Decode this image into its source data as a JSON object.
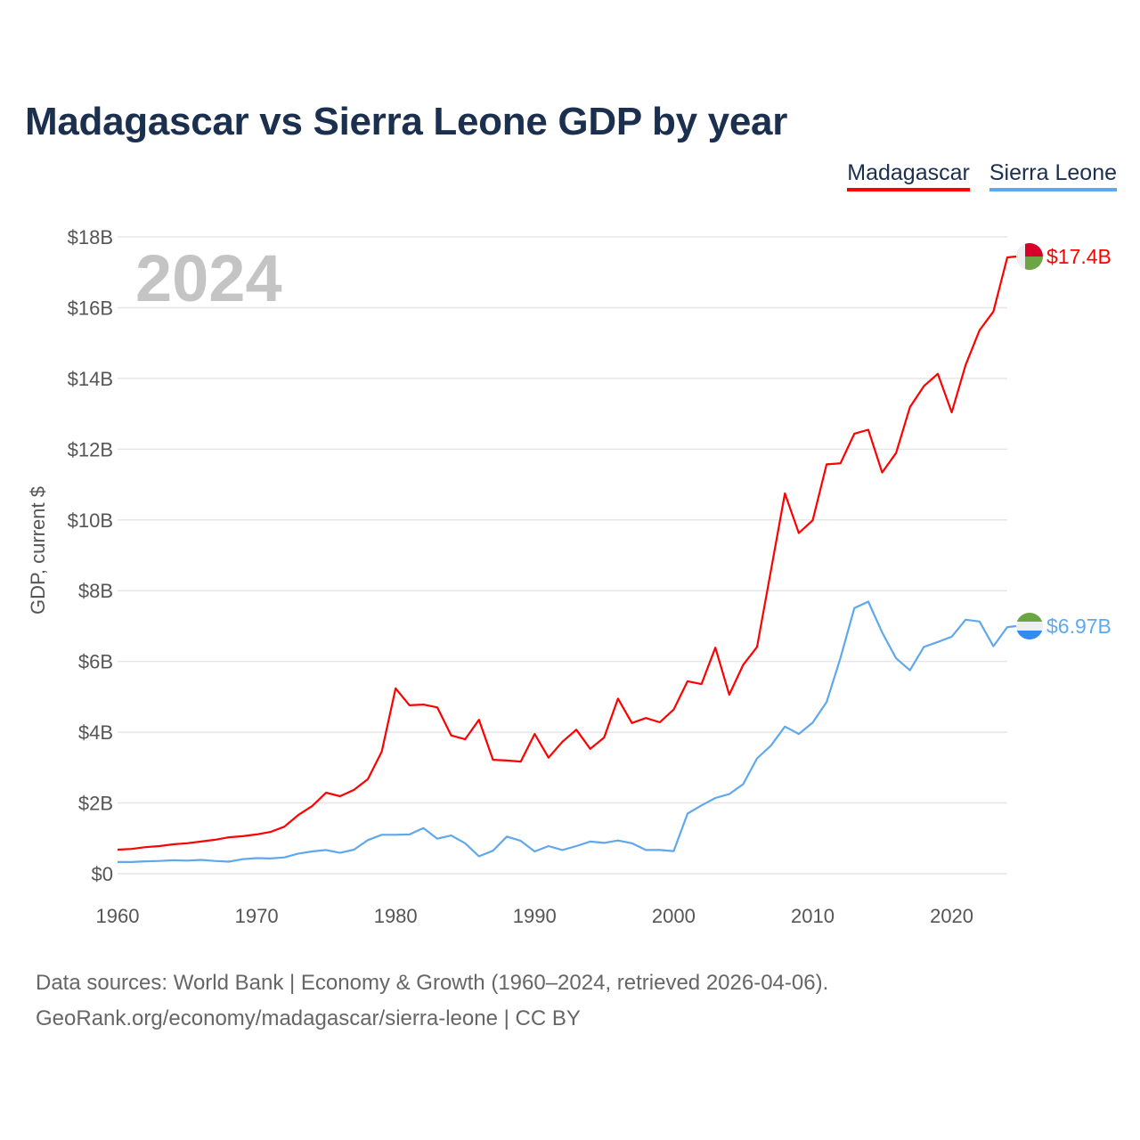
{
  "title": "Madagascar vs Sierra Leone GDP by year",
  "legend": [
    {
      "label": "Madagascar",
      "color": "#ff0000"
    },
    {
      "label": "Sierra Leone",
      "color": "#5fa8ec"
    }
  ],
  "year_watermark": "2024",
  "source_line1": "Data sources: World Bank | Economy & Growth (1960–2024, retrieved 2026-04-06).",
  "source_line2": "GeoRank.org/economy/madagascar/sierra-leone | CC BY",
  "chart_data": {
    "type": "line",
    "title": "Madagascar vs Sierra Leone GDP by year",
    "xlabel": "",
    "ylabel": "GDP, current $",
    "xlim": [
      1960,
      2024
    ],
    "ylim": [
      0,
      18
    ],
    "grid": true,
    "legend_position": "top-right",
    "x_ticks": [
      1960,
      1970,
      1980,
      1990,
      2000,
      2010,
      2020
    ],
    "x_tick_labels": [
      "1960",
      "1970",
      "1980",
      "1990",
      "2000",
      "2010",
      "2020"
    ],
    "y_ticks": [
      0,
      2,
      4,
      6,
      8,
      10,
      12,
      14,
      16,
      18
    ],
    "y_tick_labels": [
      "$0",
      "$2B",
      "$4B",
      "$6B",
      "$8B",
      "$10B",
      "$12B",
      "$14B",
      "$16B",
      "$18B"
    ],
    "x_start": 1960,
    "units": "billions USD",
    "series": [
      {
        "name": "Madagascar",
        "color": "#ff0000",
        "end_label": "$17.4B",
        "flag": "madagascar-flag",
        "values": [
          0.68,
          0.7,
          0.75,
          0.78,
          0.83,
          0.86,
          0.91,
          0.96,
          1.03,
          1.06,
          1.11,
          1.18,
          1.33,
          1.66,
          1.91,
          2.29,
          2.19,
          2.37,
          2.67,
          3.45,
          5.24,
          4.76,
          4.78,
          4.7,
          3.91,
          3.8,
          4.35,
          3.22,
          3.2,
          3.17,
          3.95,
          3.28,
          3.73,
          4.07,
          3.53,
          3.85,
          4.95,
          4.26,
          4.4,
          4.28,
          4.64,
          5.44,
          5.36,
          6.39,
          5.06,
          5.9,
          6.41,
          8.57,
          10.75,
          9.63,
          9.99,
          11.57,
          11.6,
          12.44,
          12.55,
          11.34,
          11.89,
          13.19,
          13.78,
          14.13,
          13.04,
          14.38,
          15.36,
          15.89,
          17.42
        ]
      },
      {
        "name": "Sierra Leone",
        "color": "#5fa8ec",
        "end_label": "$6.97B",
        "flag": "sierra-leone-flag",
        "values": [
          0.33,
          0.33,
          0.35,
          0.36,
          0.38,
          0.37,
          0.39,
          0.36,
          0.34,
          0.41,
          0.44,
          0.43,
          0.46,
          0.57,
          0.63,
          0.67,
          0.59,
          0.68,
          0.95,
          1.1,
          1.1,
          1.11,
          1.29,
          0.99,
          1.08,
          0.86,
          0.49,
          0.65,
          1.05,
          0.93,
          0.63,
          0.78,
          0.67,
          0.78,
          0.91,
          0.87,
          0.94,
          0.86,
          0.67,
          0.67,
          0.64,
          1.7,
          1.93,
          2.14,
          2.25,
          2.53,
          3.26,
          3.62,
          4.16,
          3.95,
          4.27,
          4.85,
          6.1,
          7.51,
          7.69,
          6.82,
          6.09,
          5.75,
          6.41,
          6.55,
          6.7,
          7.18,
          7.13,
          6.43,
          6.97
        ]
      }
    ]
  }
}
